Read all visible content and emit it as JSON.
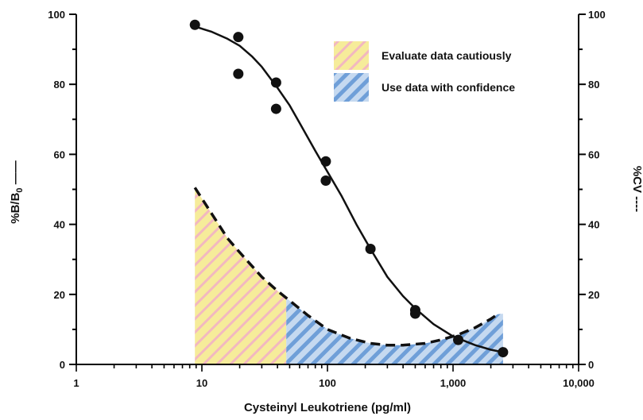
{
  "chart_data": {
    "type": "scatter",
    "x_scale": "log",
    "xlim": [
      1,
      10000
    ],
    "ylim": [
      0,
      100
    ],
    "y2lim": [
      0,
      100
    ],
    "xlabel": "Cysteinyl Leukotriene (pg/ml)",
    "ylabel": "%B/B0",
    "y2label": "%CV",
    "x_tick_labels": [
      "1",
      "10",
      "100",
      "1,000",
      "10,000"
    ],
    "x_tick_values": [
      1,
      10,
      100,
      1000,
      10000
    ],
    "y_ticks": [
      0,
      20,
      40,
      60,
      80,
      100
    ],
    "grid": false,
    "legend_position": "top-right",
    "legend": [
      {
        "label": "Evaluate data cautiously",
        "color": "#f6ec9a",
        "stripe": "#f2b8c0"
      },
      {
        "label": "Use data with confidence",
        "color": "#c5d9f0",
        "stripe": "#6f9fd8"
      }
    ],
    "regions": [
      {
        "name": "Evaluate data cautiously",
        "x_start": 8.8,
        "x_end": 47
      },
      {
        "name": "Use data with confidence",
        "x_start": 47,
        "x_end": 2500
      }
    ],
    "series": [
      {
        "type": "scatter",
        "points": [
          {
            "x": 8.8,
            "y": 97
          },
          {
            "x": 19.5,
            "y": 93.5
          },
          {
            "x": 19.5,
            "y": 83
          },
          {
            "x": 39,
            "y": 80.5
          },
          {
            "x": 39,
            "y": 73
          },
          {
            "x": 97,
            "y": 58
          },
          {
            "x": 97,
            "y": 52.5
          },
          {
            "x": 220,
            "y": 33
          },
          {
            "x": 500,
            "y": 15.5
          },
          {
            "x": 500,
            "y": 14.5
          },
          {
            "x": 1100,
            "y": 7
          },
          {
            "x": 2500,
            "y": 3.5
          }
        ]
      },
      {
        "type": "line",
        "style": "solid",
        "points": [
          {
            "x": 8.8,
            "y": 96.5
          },
          {
            "x": 12,
            "y": 95
          },
          {
            "x": 16,
            "y": 93
          },
          {
            "x": 20,
            "y": 91
          },
          {
            "x": 25,
            "y": 88
          },
          {
            "x": 30,
            "y": 85
          },
          {
            "x": 40,
            "y": 79
          },
          {
            "x": 50,
            "y": 74
          },
          {
            "x": 60,
            "y": 69
          },
          {
            "x": 80,
            "y": 61
          },
          {
            "x": 100,
            "y": 55
          },
          {
            "x": 130,
            "y": 48
          },
          {
            "x": 170,
            "y": 40
          },
          {
            "x": 220,
            "y": 33
          },
          {
            "x": 300,
            "y": 25
          },
          {
            "x": 400,
            "y": 19.5
          },
          {
            "x": 500,
            "y": 16
          },
          {
            "x": 700,
            "y": 11.5
          },
          {
            "x": 1000,
            "y": 8
          },
          {
            "x": 1500,
            "y": 5.5
          },
          {
            "x": 2000,
            "y": 4.2
          },
          {
            "x": 2500,
            "y": 3.5
          }
        ]
      },
      {
        "type": "line",
        "style": "dashed",
        "axis": "right",
        "points": [
          {
            "x": 8.8,
            "y": 50.5
          },
          {
            "x": 12,
            "y": 43
          },
          {
            "x": 16,
            "y": 36
          },
          {
            "x": 20,
            "y": 32
          },
          {
            "x": 30,
            "y": 25
          },
          {
            "x": 40,
            "y": 21
          },
          {
            "x": 47,
            "y": 19
          },
          {
            "x": 70,
            "y": 14
          },
          {
            "x": 100,
            "y": 10
          },
          {
            "x": 150,
            "y": 7.5
          },
          {
            "x": 220,
            "y": 6
          },
          {
            "x": 300,
            "y": 5.5
          },
          {
            "x": 400,
            "y": 5.5
          },
          {
            "x": 600,
            "y": 6
          },
          {
            "x": 800,
            "y": 7
          },
          {
            "x": 1100,
            "y": 8.5
          },
          {
            "x": 1500,
            "y": 10.5
          },
          {
            "x": 2000,
            "y": 13
          },
          {
            "x": 2300,
            "y": 14.5
          }
        ]
      }
    ]
  }
}
